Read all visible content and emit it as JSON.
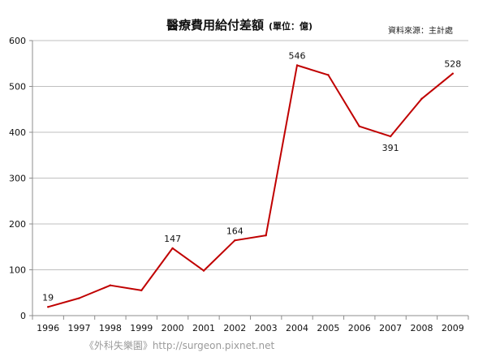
{
  "chart_data": {
    "type": "line",
    "title": "醫療費用給付差額",
    "unit_note": "(單位：億)",
    "source": "資料來源：主計處",
    "x": [
      "1996",
      "1997",
      "1998",
      "1999",
      "2000",
      "2001",
      "2002",
      "2003",
      "2004",
      "2005",
      "2006",
      "2007",
      "2008",
      "2009"
    ],
    "series": [
      {
        "values": [
          19,
          38,
          66,
          55,
          147,
          98,
          164,
          175,
          546,
          525,
          413,
          391,
          473,
          528
        ]
      }
    ],
    "data_labels": [
      {
        "index": 0,
        "text": "19"
      },
      {
        "index": 4,
        "text": "147"
      },
      {
        "index": 6,
        "text": "164"
      },
      {
        "index": 8,
        "text": "546"
      },
      {
        "index": 11,
        "text": "391"
      },
      {
        "index": 13,
        "text": "528"
      }
    ],
    "ylim": [
      0,
      600
    ],
    "yticks": [
      0,
      100,
      200,
      300,
      400,
      500,
      600
    ],
    "grid": true,
    "line_color": "#c00000",
    "watermark": "《外科失樂園》http://surgeon.pixnet.net"
  }
}
